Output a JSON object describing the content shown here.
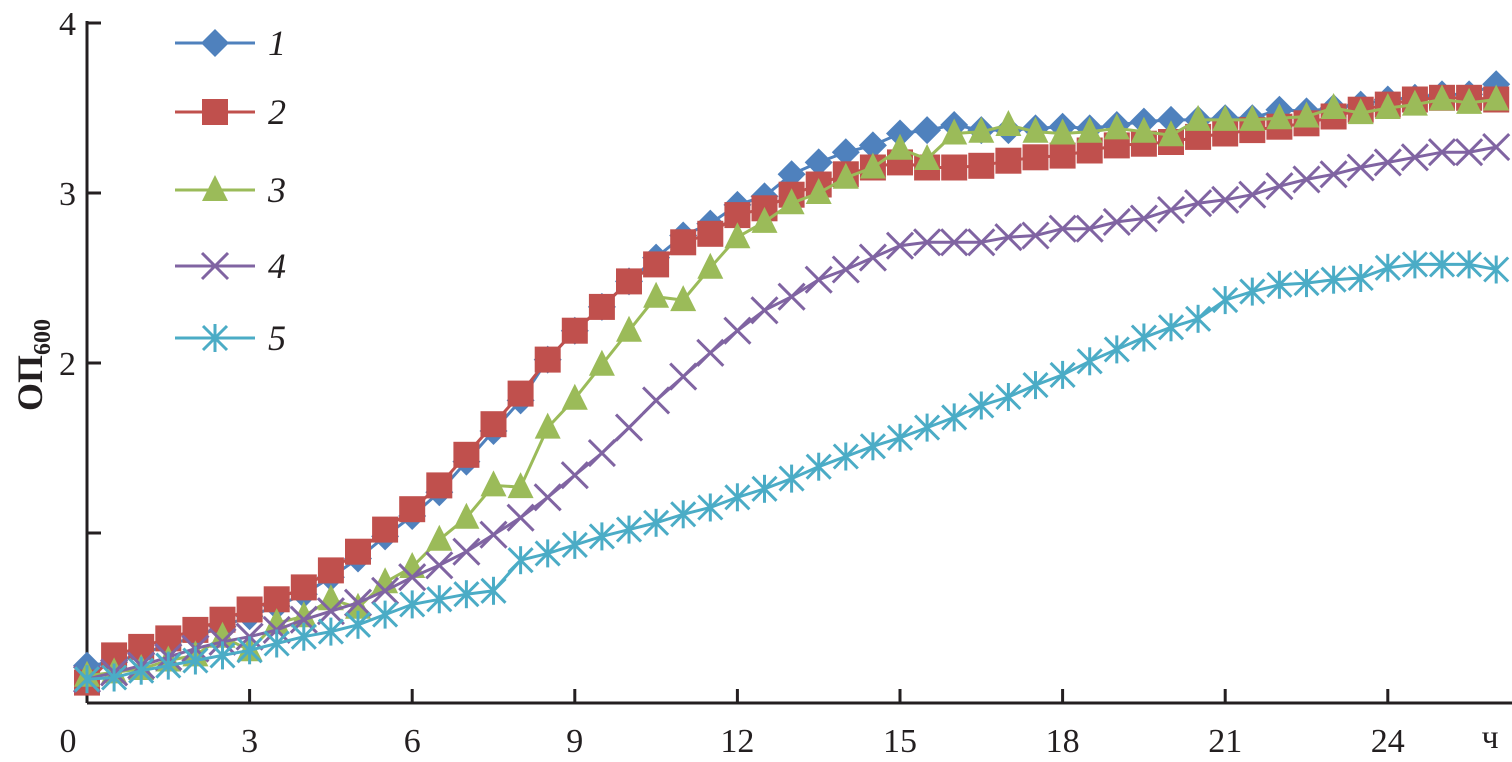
{
  "chart_data": {
    "type": "line",
    "title": "",
    "xlabel": "ч",
    "ylabel": "ОП",
    "ylabel_sub": "600",
    "xlim": [
      0,
      26.3
    ],
    "ylim": [
      0,
      4
    ],
    "x_ticks": [
      0,
      3,
      6,
      9,
      12,
      15,
      18,
      21,
      24
    ],
    "x_tick_labels": [
      "0",
      "3",
      "6",
      "9",
      "12",
      "15",
      "18",
      "21",
      "24"
    ],
    "y_ticks": [
      1,
      2,
      3,
      4
    ],
    "y_tick_labels": [
      "",
      "2",
      "3",
      "4"
    ],
    "grid": false,
    "legend_position": "top-left",
    "x": [
      0,
      0.5,
      1,
      1.5,
      2,
      2.5,
      3,
      3.5,
      4,
      4.5,
      5,
      5.5,
      6,
      6.5,
      7,
      7.5,
      8,
      8.5,
      9,
      9.5,
      10,
      10.5,
      11,
      11.5,
      12,
      12.5,
      13,
      13.5,
      14,
      14.5,
      15,
      15.5,
      16,
      16.5,
      17,
      17.5,
      18,
      18.5,
      19,
      19.5,
      20,
      20.5,
      21,
      21.5,
      22,
      22.5,
      23,
      23.5,
      24,
      24.5,
      25,
      25.5,
      26
    ],
    "series": [
      {
        "name": "1",
        "marker": "diamond",
        "color": "#4F81BD",
        "values": [
          0.22,
          0.24,
          0.29,
          0.34,
          0.39,
          0.45,
          0.51,
          0.57,
          0.64,
          0.74,
          0.85,
          0.98,
          1.1,
          1.24,
          1.42,
          1.6,
          1.78,
          2.02,
          2.19,
          2.33,
          2.48,
          2.62,
          2.75,
          2.82,
          2.93,
          2.98,
          3.11,
          3.18,
          3.24,
          3.28,
          3.35,
          3.37,
          3.4,
          3.37,
          3.37,
          3.38,
          3.39,
          3.38,
          3.4,
          3.42,
          3.43,
          3.43,
          3.44,
          3.44,
          3.49,
          3.48,
          3.5,
          3.52,
          3.55,
          3.56,
          3.58,
          3.58,
          3.64
        ]
      },
      {
        "name": "2",
        "marker": "square",
        "color": "#C0504D",
        "values": [
          0.12,
          0.28,
          0.33,
          0.38,
          0.43,
          0.49,
          0.55,
          0.61,
          0.68,
          0.78,
          0.89,
          1.02,
          1.14,
          1.28,
          1.46,
          1.64,
          1.82,
          2.02,
          2.19,
          2.33,
          2.48,
          2.58,
          2.71,
          2.76,
          2.87,
          2.91,
          2.99,
          3.05,
          3.11,
          3.15,
          3.18,
          3.15,
          3.15,
          3.16,
          3.19,
          3.21,
          3.22,
          3.25,
          3.28,
          3.29,
          3.3,
          3.33,
          3.35,
          3.37,
          3.39,
          3.41,
          3.45,
          3.49,
          3.52,
          3.55,
          3.56,
          3.56,
          3.55
        ]
      },
      {
        "name": "3",
        "marker": "triangle",
        "color": "#9BBB59",
        "values": [
          0.16,
          0.18,
          0.2,
          0.25,
          0.28,
          0.39,
          0.31,
          0.47,
          0.51,
          0.61,
          0.56,
          0.71,
          0.8,
          0.96,
          1.09,
          1.28,
          1.27,
          1.62,
          1.79,
          1.99,
          2.19,
          2.39,
          2.37,
          2.56,
          2.74,
          2.83,
          2.94,
          3.0,
          3.09,
          3.15,
          3.26,
          3.2,
          3.35,
          3.36,
          3.4,
          3.36,
          3.35,
          3.36,
          3.38,
          3.36,
          3.34,
          3.43,
          3.43,
          3.43,
          3.44,
          3.45,
          3.5,
          3.47,
          3.5,
          3.52,
          3.55,
          3.53,
          3.55
        ]
      },
      {
        "name": "4",
        "marker": "x",
        "color": "#8064A2",
        "values": [
          0.14,
          0.18,
          0.22,
          0.27,
          0.32,
          0.36,
          0.39,
          0.43,
          0.49,
          0.54,
          0.59,
          0.66,
          0.74,
          0.81,
          0.89,
          0.99,
          1.09,
          1.21,
          1.34,
          1.47,
          1.62,
          1.78,
          1.92,
          2.06,
          2.19,
          2.31,
          2.39,
          2.49,
          2.55,
          2.62,
          2.69,
          2.71,
          2.71,
          2.71,
          2.74,
          2.75,
          2.79,
          2.79,
          2.83,
          2.85,
          2.9,
          2.94,
          2.96,
          2.99,
          3.04,
          3.08,
          3.11,
          3.15,
          3.18,
          3.21,
          3.24,
          3.24,
          3.27
        ]
      },
      {
        "name": "5",
        "marker": "asterisk",
        "color": "#4BACC6",
        "values": [
          0.14,
          0.15,
          0.19,
          0.22,
          0.25,
          0.28,
          0.31,
          0.35,
          0.39,
          0.42,
          0.46,
          0.52,
          0.58,
          0.61,
          0.64,
          0.66,
          0.84,
          0.88,
          0.93,
          0.98,
          1.02,
          1.06,
          1.11,
          1.15,
          1.21,
          1.26,
          1.32,
          1.39,
          1.45,
          1.51,
          1.56,
          1.62,
          1.68,
          1.75,
          1.8,
          1.87,
          1.93,
          2.01,
          2.08,
          2.15,
          2.21,
          2.26,
          2.37,
          2.42,
          2.46,
          2.47,
          2.49,
          2.5,
          2.56,
          2.58,
          2.58,
          2.58,
          2.55
        ]
      }
    ]
  }
}
